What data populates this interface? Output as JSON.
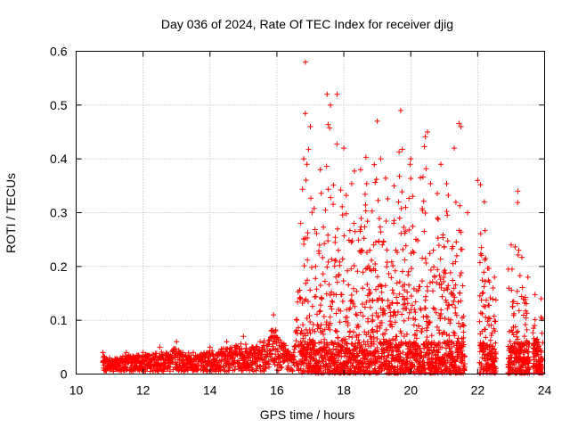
{
  "chart_data": {
    "type": "scatter",
    "title": "Day 036 of 2024, Rate Of TEC Index for receiver djig",
    "xlabel": "GPS time / hours",
    "ylabel": "ROTI / TECUs",
    "xlim": [
      10,
      24
    ],
    "ylim": [
      0,
      0.6
    ],
    "x_ticks": [
      10,
      12,
      14,
      16,
      18,
      20,
      22,
      24
    ],
    "y_ticks": [
      0,
      0.1,
      0.2,
      0.3,
      0.4,
      0.5,
      0.6
    ],
    "x_tick_labels": [
      "10",
      "12",
      "14",
      "16",
      "18",
      "20",
      "22",
      "24"
    ],
    "y_tick_labels": [
      "0",
      "0.1",
      "0.2",
      "0.3",
      "0.4",
      "0.5",
      "0.6"
    ],
    "grid": true,
    "marker": "+",
    "color": "#ff0000",
    "series": [
      {
        "name": "ROTI",
        "note": "dense point cloud; representative outline points read from figure",
        "x": [
          10.8,
          11.0,
          11.5,
          12.0,
          12.5,
          13.0,
          13.5,
          14.0,
          14.5,
          15.0,
          15.5,
          15.9,
          16.5,
          16.8,
          16.85,
          17.0,
          17.3,
          17.5,
          17.6,
          17.8,
          18.0,
          18.5,
          19.0,
          19.1,
          19.5,
          19.7,
          20.0,
          20.5,
          20.9,
          21.3,
          21.5,
          21.7,
          22.0,
          22.2,
          22.5,
          23.0,
          23.2,
          23.5,
          23.9
        ],
        "y": [
          0.04,
          0.03,
          0.04,
          0.04,
          0.05,
          0.06,
          0.04,
          0.05,
          0.06,
          0.07,
          0.06,
          0.11,
          0.04,
          0.4,
          0.58,
          0.46,
          0.38,
          0.52,
          0.5,
          0.52,
          0.42,
          0.38,
          0.47,
          0.4,
          0.35,
          0.49,
          0.4,
          0.45,
          0.39,
          0.42,
          0.46,
          0.3,
          0.36,
          0.32,
          0.18,
          0.24,
          0.34,
          0.18,
          0.14
        ]
      }
    ]
  }
}
